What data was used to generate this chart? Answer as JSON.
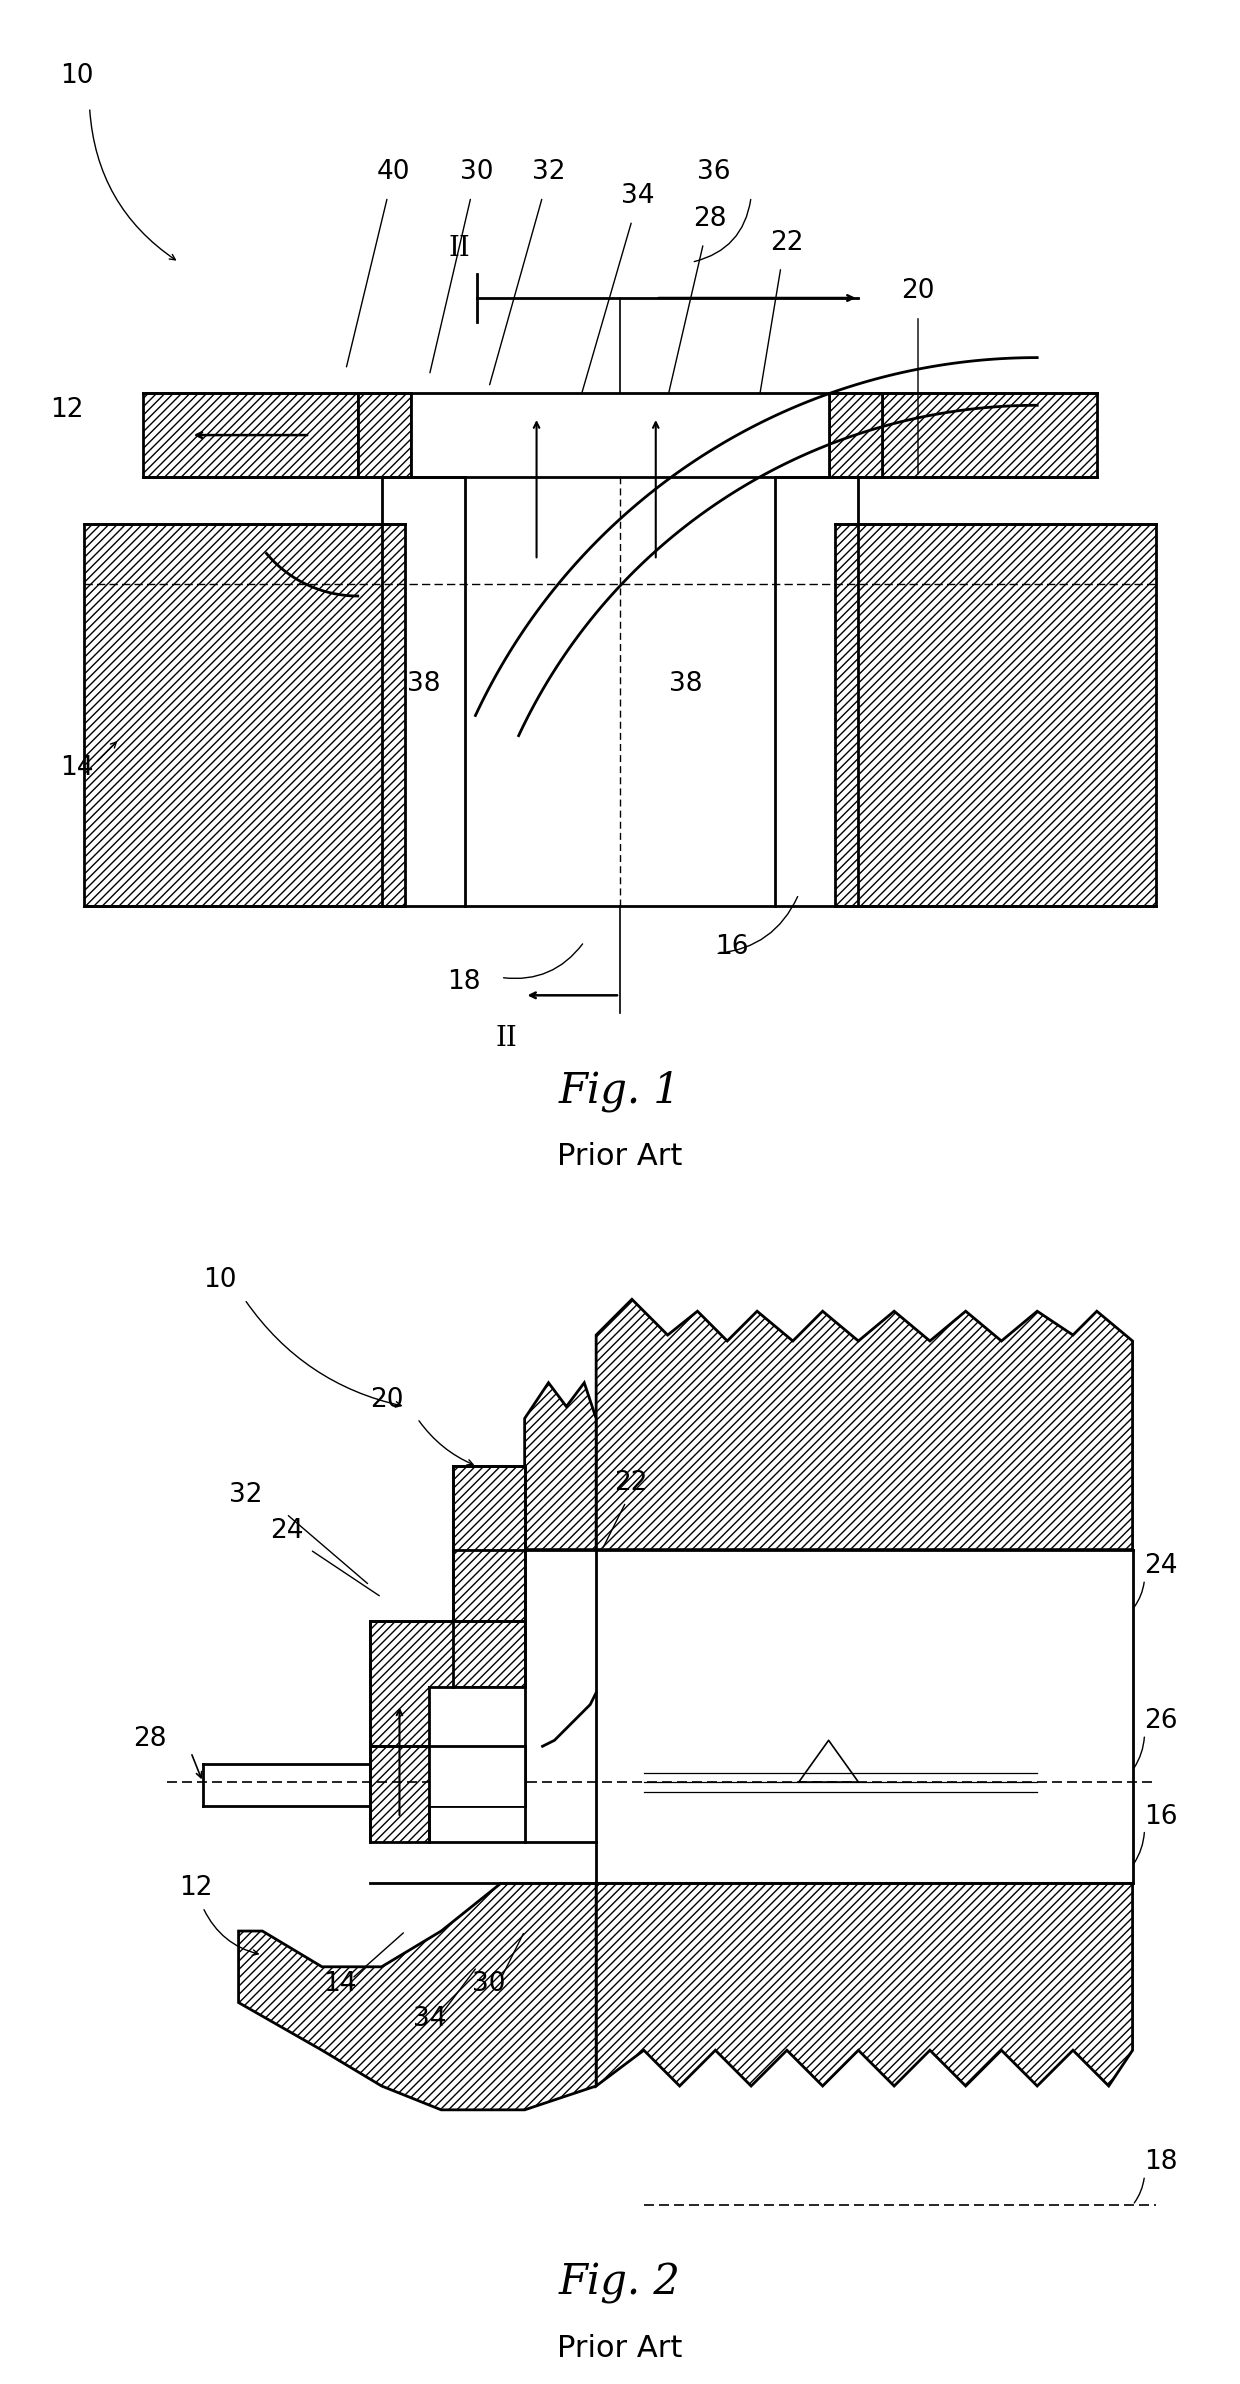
{
  "fig1_title": "Fig. 1",
  "fig1_subtitle": "Prior Art",
  "fig2_title": "Fig. 2",
  "fig2_subtitle": "Prior Art",
  "bg_color": "#ffffff",
  "line_color": "#000000",
  "font_size_title": 30,
  "font_size_label": 22,
  "font_size_ref": 19
}
